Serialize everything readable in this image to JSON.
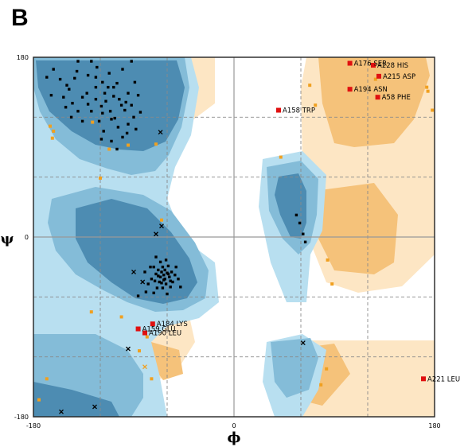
{
  "panel_label": "B",
  "chart_data": {
    "type": "scatter",
    "title": "",
    "xlabel": "ϕ",
    "ylabel": "ψ",
    "xlim": [
      -180,
      180
    ],
    "ylim": [
      -180,
      180
    ],
    "x_tick_labels": [
      {
        "value": -180,
        "label": "-180"
      },
      {
        "value": 0,
        "label": "0"
      },
      {
        "value": 180,
        "label": "180"
      }
    ],
    "y_tick_labels": [
      {
        "value": -180,
        "label": "-180"
      },
      {
        "value": 0,
        "label": "0"
      },
      {
        "value": 180,
        "label": "180"
      }
    ],
    "grid_x": [
      -120,
      -60,
      0,
      60,
      120
    ],
    "grid_y": [
      -120,
      -60,
      0,
      60,
      120
    ],
    "colors": {
      "core_blue": "#4d8cb2",
      "allowed_blue": "#84bcd8",
      "generous_blue": "#b8dff0",
      "core_orange": "#f5c27a",
      "allowed_orange": "#fde6c4",
      "favoured_point": "#000000",
      "glycine_point": "#f0a020",
      "outlier_point": "#e01010"
    },
    "labelled_residues": [
      {
        "label": "A176 SER",
        "phi": 104,
        "psi": 174
      },
      {
        "label": "A228 HIS",
        "phi": 125,
        "psi": 172
      },
      {
        "label": "A215 ASP",
        "phi": 130,
        "psi": 161
      },
      {
        "label": "A194 ASN",
        "phi": 104,
        "psi": 148
      },
      {
        "label": "A58 PHE",
        "phi": 129,
        "psi": 140
      },
      {
        "label": "A158 TRP",
        "phi": 40,
        "psi": 127
      },
      {
        "label": "A184 LYS",
        "phi": -73,
        "psi": -87
      },
      {
        "label": "A159 GLU",
        "phi": -86,
        "psi": -92
      },
      {
        "label": "A190 LEU",
        "phi": -80,
        "psi": -96
      },
      {
        "label": "A221 LEU",
        "phi": 170,
        "psi": -142
      }
    ],
    "glycine_points": [
      [
        -165,
        111
      ],
      [
        -162,
        106
      ],
      [
        -163,
        99
      ],
      [
        -120,
        59
      ],
      [
        -127,
        115
      ],
      [
        -95,
        92
      ],
      [
        -112,
        88
      ],
      [
        -70,
        93
      ],
      [
        -65,
        17
      ],
      [
        -128,
        -75
      ],
      [
        -101,
        -80
      ],
      [
        -78,
        -100
      ],
      [
        -85,
        -114
      ],
      [
        -74,
        -142
      ],
      [
        -168,
        -142
      ],
      [
        -175,
        -163
      ],
      [
        42,
        80
      ],
      [
        73,
        132
      ],
      [
        68,
        152
      ],
      [
        84,
        -23
      ],
      [
        88,
        -47
      ],
      [
        83,
        -132
      ],
      [
        78,
        -148
      ],
      [
        127,
        158
      ],
      [
        173,
        150
      ],
      [
        174,
        146
      ],
      [
        178,
        127
      ]
    ],
    "glycine_crosses": [
      [
        -80,
        -130
      ]
    ],
    "core_cross_points": [
      [
        -66,
        105
      ],
      [
        -65,
        11
      ],
      [
        -70,
        3
      ],
      [
        -90,
        -35
      ],
      [
        -82,
        -45
      ],
      [
        -95,
        -112
      ],
      [
        -125,
        -170
      ],
      [
        -155,
        -175
      ],
      [
        62,
        -106
      ]
    ],
    "core_points": [
      [
        -168,
        160
      ],
      [
        -164,
        142
      ],
      [
        -162,
        168
      ],
      [
        -148,
        148
      ],
      [
        -150,
        152
      ],
      [
        -145,
        134
      ],
      [
        -141,
        166
      ],
      [
        -132,
        144
      ],
      [
        -131,
        162
      ],
      [
        -124,
        160
      ],
      [
        -124,
        150
      ],
      [
        -119,
        131
      ],
      [
        -121,
        116
      ],
      [
        -119,
        98
      ],
      [
        -117,
        106
      ],
      [
        -116,
        144
      ],
      [
        -113,
        150
      ],
      [
        -111,
        126
      ],
      [
        -108,
        150
      ],
      [
        -105,
        154
      ],
      [
        -103,
        138
      ],
      [
        -101,
        132
      ],
      [
        -98,
        127
      ],
      [
        -96,
        104
      ],
      [
        -95,
        144
      ],
      [
        -97,
        135
      ],
      [
        -92,
        132
      ],
      [
        -90,
        120
      ],
      [
        -89,
        155
      ],
      [
        -86,
        142
      ],
      [
        -124,
        138
      ],
      [
        -128,
        126
      ],
      [
        -136,
        116
      ],
      [
        -140,
        126
      ],
      [
        -146,
        120
      ],
      [
        -110,
        118
      ],
      [
        -104,
        110
      ],
      [
        -100,
        100
      ],
      [
        -118,
        124
      ],
      [
        -110,
        96
      ],
      [
        -105,
        88
      ],
      [
        -131,
        133
      ],
      [
        -123,
        170
      ],
      [
        -115,
        136
      ],
      [
        -107,
        119
      ],
      [
        -136,
        140
      ],
      [
        -143,
        159
      ],
      [
        -151,
        130
      ],
      [
        -156,
        158
      ],
      [
        -153,
        140
      ],
      [
        -95,
        113
      ],
      [
        -88,
        108
      ],
      [
        -84,
        125
      ],
      [
        -112,
        164
      ],
      [
        -118,
        155
      ],
      [
        -100,
        168
      ],
      [
        -92,
        176
      ],
      [
        -140,
        176
      ],
      [
        -128,
        176
      ],
      [
        -108,
        141
      ],
      [
        -68,
        -33
      ],
      [
        -65,
        -35
      ],
      [
        -63,
        -38
      ],
      [
        -66,
        -40
      ],
      [
        -62,
        -42
      ],
      [
        -60,
        -36
      ],
      [
        -64,
        -30
      ],
      [
        -58,
        -40
      ],
      [
        -67,
        -45
      ],
      [
        -61,
        -47
      ],
      [
        -56,
        -35
      ],
      [
        -59,
        -29
      ],
      [
        -70,
        -37
      ],
      [
        -72,
        -30
      ],
      [
        -55,
        -45
      ],
      [
        -64,
        -51
      ],
      [
        -69,
        -51
      ],
      [
        -74,
        -42
      ],
      [
        -53,
        -38
      ],
      [
        -57,
        -50
      ],
      [
        -66,
        -25
      ],
      [
        -61,
        -23
      ],
      [
        -77,
        -47
      ],
      [
        -72,
        -56
      ],
      [
        -86,
        -59
      ],
      [
        -60,
        -57
      ],
      [
        -52,
        -30
      ],
      [
        -70,
        -20
      ],
      [
        -75,
        -30
      ],
      [
        -80,
        -35
      ],
      [
        -63,
        -43
      ],
      [
        -59,
        -37
      ],
      [
        -68,
        -39
      ],
      [
        -62,
        -33
      ],
      [
        -65,
        -46
      ],
      [
        -57,
        -44
      ],
      [
        -71,
        -44
      ],
      [
        -50,
        -42
      ],
      [
        -79,
        -55
      ],
      [
        -48,
        -50
      ],
      [
        56,
        22
      ],
      [
        59,
        14
      ],
      [
        62,
        3
      ],
      [
        64,
        -5
      ]
    ]
  }
}
